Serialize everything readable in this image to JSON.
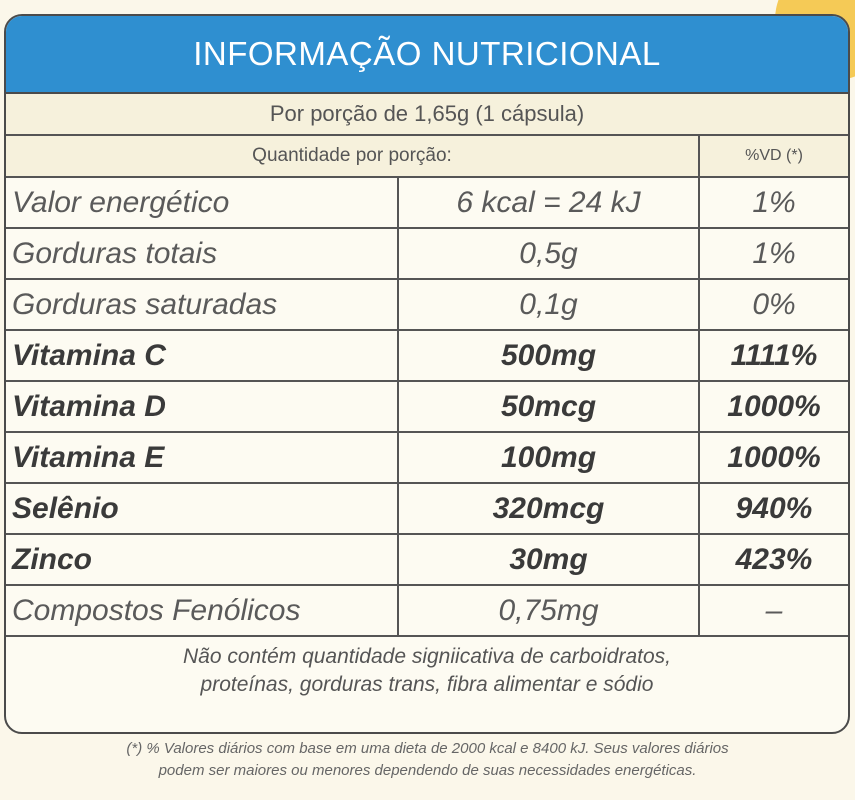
{
  "header": {
    "title": "INFORMAÇÃO NUTRICIONAL"
  },
  "portion": "Por porção de 1,65g (1 cápsula)",
  "columns": {
    "quantity": "Quantidade por porção:",
    "vd": "%VD (*)"
  },
  "rows": [
    {
      "name": "Valor energético",
      "qty": "6 kcal = 24 kJ",
      "vd": "1%"
    },
    {
      "name": "Gorduras totais",
      "qty": "0,5g",
      "vd": "1%"
    },
    {
      "name": "Gorduras saturadas",
      "qty": "0,1g",
      "vd": "0%"
    },
    {
      "name": "Vitamina C",
      "qty": "500mg",
      "vd": "1111%"
    },
    {
      "name": "Vitamina D",
      "qty": "50mcg",
      "vd": "1000%"
    },
    {
      "name": "Vitamina E",
      "qty": "100mg",
      "vd": "1000%"
    },
    {
      "name": "Selênio",
      "qty": "320mcg",
      "vd": "940%"
    },
    {
      "name": "Zinco",
      "qty": "30mg",
      "vd": "423%"
    },
    {
      "name": "Compostos Fenólicos",
      "qty": "0,75mg",
      "vd": "–"
    }
  ],
  "note": {
    "line1": "Não contém quantidade signiicativa de carboidratos,",
    "line2": "proteínas, gorduras trans, fibra alimentar e sódio"
  },
  "footnote": {
    "line1": "(*) % Valores diários com base em uma dieta de 2000 kcal e 8400 kJ. Seus valores diários",
    "line2": "podem ser maiores ou menores dependendo de suas necessidades energéticas."
  },
  "colors": {
    "header": "#2f8fd0",
    "background": "#fdfbf2",
    "border": "#4b4b4b"
  }
}
